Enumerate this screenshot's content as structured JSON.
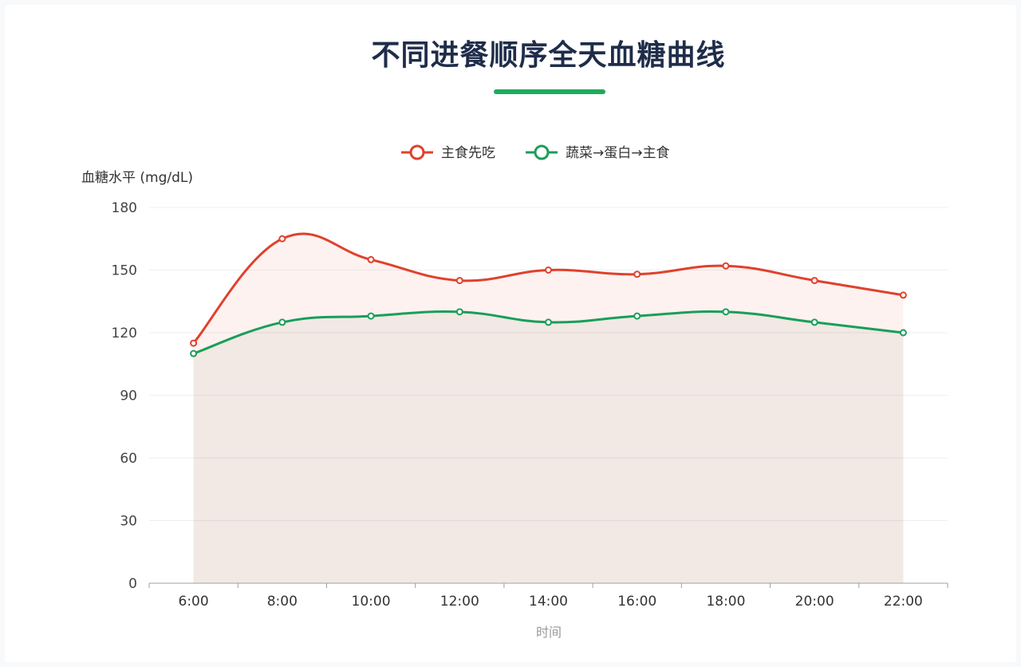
{
  "title": "不同进餐顺序全天血糖曲线",
  "colors": {
    "accent": "#1dab5e",
    "red": "#e0412c",
    "green": "#1a9e5a"
  },
  "chart_data": {
    "type": "area",
    "categories": [
      "6:00",
      "8:00",
      "10:00",
      "12:00",
      "14:00",
      "16:00",
      "18:00",
      "20:00",
      "22:00"
    ],
    "series": [
      {
        "name": "主食先吃",
        "values": [
          115,
          165,
          155,
          145,
          150,
          148,
          152,
          145,
          138
        ]
      },
      {
        "name": "蔬菜→蛋白→主食",
        "values": [
          110,
          125,
          128,
          130,
          125,
          128,
          130,
          125,
          120
        ]
      }
    ],
    "xlabel": "时间",
    "ylabel": "血糖水平 (mg/dL)",
    "ylim": [
      0,
      180
    ],
    "yticks": [
      0,
      30,
      60,
      90,
      120,
      150,
      180
    ],
    "grid": true,
    "legend": "top-center"
  }
}
